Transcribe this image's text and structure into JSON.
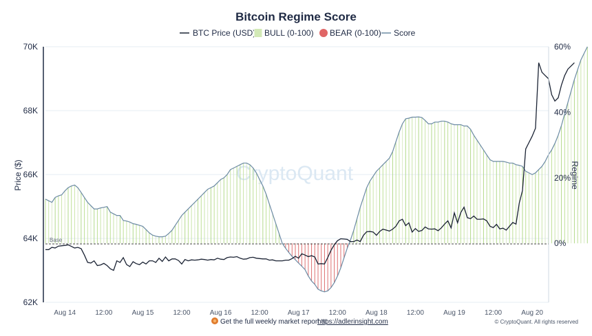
{
  "chart_data": {
    "type": "line",
    "title": "Bitcoin Regime Score",
    "legend": [
      {
        "name": "BTC Price (USD)",
        "kind": "line",
        "color": "#1a2233"
      },
      {
        "name": "BULL (0-100)",
        "kind": "bars",
        "color": "#b9dd8f"
      },
      {
        "name": "BEAR (0-100)",
        "kind": "bars",
        "color": "#e06666"
      },
      {
        "name": "Score",
        "kind": "line",
        "color": "#6b8aa3"
      }
    ],
    "legend_placement": "top-center",
    "ylabel_left": "Price ($)",
    "ylabel_right": "Regime",
    "ylim_left": [
      62000,
      70000
    ],
    "ylim_right": [
      -18,
      60
    ],
    "y_ticks_left": [
      "62K",
      "64K",
      "66K",
      "68K",
      "70K"
    ],
    "y_tick_values_left": [
      62000,
      64000,
      66000,
      68000,
      70000
    ],
    "y_ticks_right": [
      "0%",
      "20%",
      "40%",
      "60%"
    ],
    "y_tick_values_right": [
      0,
      20,
      40,
      60
    ],
    "x_ticks": [
      "Aug 14",
      "12:00",
      "Aug 15",
      "12:00",
      "Aug 16",
      "12:00",
      "Aug 17",
      "12:00",
      "Aug 18",
      "12:00",
      "Aug 19",
      "12:00",
      "Aug 20"
    ],
    "x_tick_positions": [
      6,
      18,
      30,
      42,
      54,
      66,
      78,
      90,
      102,
      114,
      126,
      138,
      150
    ],
    "x_range": [
      0,
      154
    ],
    "grid": "horizontal",
    "base_label": "Base",
    "watermark": "CryptoQuant",
    "series": [
      {
        "name": "Score",
        "values": [
          13.5,
          13,
          12.5,
          14,
          14.5,
          14.8,
          16,
          17,
          17.5,
          17.8,
          17,
          15.5,
          14,
          12.5,
          11.5,
          10.5,
          10.5,
          10.8,
          11,
          11.2,
          9.5,
          9,
          8.5,
          8.5,
          7,
          6.8,
          6.5,
          6,
          5.8,
          5.5,
          5.2,
          4.2,
          3.2,
          2.5,
          2.2,
          2,
          2,
          2.2,
          3,
          4,
          5.5,
          7,
          8.5,
          9.5,
          10.5,
          11.5,
          12.5,
          13.5,
          14.5,
          15.5,
          16.5,
          17,
          17.5,
          18.5,
          19.5,
          20,
          21,
          22.5,
          23,
          23.5,
          24,
          24.5,
          24.5,
          24,
          23,
          21.5,
          19.5,
          17.5,
          15,
          12,
          9,
          6,
          3,
          0,
          -1.5,
          -2.8,
          -4,
          -5,
          -6,
          -7,
          -8,
          -10,
          -11.5,
          -12.5,
          -14,
          -14.5,
          -14.8,
          -14.5,
          -13.5,
          -12,
          -10,
          -7.5,
          -4.5,
          -1.5,
          1,
          4,
          7.5,
          11,
          14,
          17,
          19,
          20.5,
          22,
          23,
          24,
          25,
          26,
          28,
          31,
          34,
          36.5,
          38,
          38.2,
          38.5,
          38.5,
          38.6,
          38.4,
          37.5,
          36.5,
          36.5,
          37,
          37,
          37.3,
          37.3,
          37,
          36.5,
          36.2,
          36.2,
          36.2,
          35.8,
          35.8,
          34.8,
          33,
          31.5,
          30,
          28.5,
          27,
          25.5,
          25,
          25,
          25,
          25,
          24.8,
          24.5,
          24.5,
          24,
          23.8,
          23.5,
          22,
          21.5,
          21,
          21.5,
          22.5,
          23.5,
          25,
          27,
          28.5,
          30.5,
          33,
          36,
          39.5,
          43,
          46.5,
          50,
          53,
          56,
          58,
          60
        ]
      },
      {
        "name": "BTC Price (USD)",
        "values": [
          63650,
          63650,
          63720,
          63700,
          63760,
          63770,
          63780,
          63800,
          63750,
          63700,
          63720,
          63680,
          63480,
          63250,
          63230,
          63300,
          63150,
          63170,
          63220,
          63150,
          63050,
          63000,
          63300,
          63250,
          63400,
          63180,
          63120,
          63270,
          63210,
          63180,
          63260,
          63200,
          63300,
          63300,
          63250,
          63380,
          63280,
          63420,
          63300,
          63360,
          63360,
          63310,
          63200,
          63340,
          63300,
          63330,
          63320,
          63330,
          63350,
          63340,
          63320,
          63340,
          63330,
          63380,
          63350,
          63340,
          63400,
          63420,
          63410,
          63430,
          63380,
          63350,
          63360,
          63400,
          63410,
          63380,
          63370,
          63360,
          63360,
          63320,
          63330,
          63300,
          63300,
          63300,
          63320,
          63320,
          63370,
          63440,
          63380,
          63520,
          63480,
          63430,
          63460,
          63420,
          63200,
          63210,
          63200,
          63400,
          63630,
          63800,
          63930,
          63990,
          63980,
          63970,
          63900,
          63900,
          63950,
          63900,
          64100,
          64210,
          64220,
          64200,
          64100,
          64220,
          64290,
          64260,
          64230,
          64290,
          64380,
          64550,
          64600,
          64400,
          64490,
          64200,
          64310,
          64220,
          64250,
          64360,
          64300,
          64290,
          64300,
          64240,
          64330,
          64450,
          64550,
          64330,
          64800,
          64490,
          64810,
          64980,
          64650,
          64620,
          64700,
          64600,
          64600,
          64610,
          64550,
          64380,
          64340,
          64440,
          64300,
          64320,
          64260,
          64380,
          64500,
          64450,
          65100,
          65500,
          66800,
          67000,
          67200,
          67450,
          69500,
          69200,
          69100,
          69000,
          68500,
          68300,
          68400,
          68800,
          69100,
          69300,
          69400,
          69500
        ]
      }
    ]
  },
  "footer": {
    "text": "Get the full weekly market report at",
    "link": "https://adlerinsight.com",
    "copyright": "© CryptoQuant. All rights reserved"
  }
}
